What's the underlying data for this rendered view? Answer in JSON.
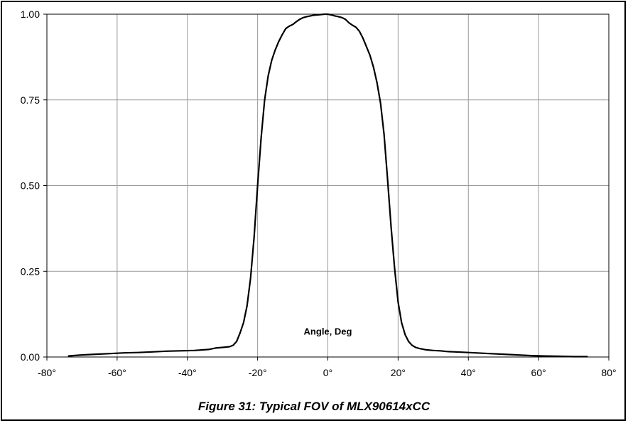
{
  "caption": "Figure 31: Typical FOV of MLX90614xCC",
  "chart_data": {
    "type": "line",
    "title": "",
    "xlabel": "",
    "ylabel": "",
    "annotation": "Angle, Deg",
    "xlim": [
      -80,
      80
    ],
    "ylim": [
      0,
      1
    ],
    "x_ticks": [
      -80,
      -60,
      -40,
      -20,
      0,
      20,
      40,
      60,
      80
    ],
    "x_tick_labels": [
      "-80°",
      "-60°",
      "-40°",
      "-20°",
      "0°",
      "20°",
      "40°",
      "60°",
      "80°"
    ],
    "y_ticks": [
      0,
      0.25,
      0.5,
      0.75,
      1.0
    ],
    "y_tick_labels": [
      "0.00",
      "0.25",
      "0.50",
      "0.75",
      "1.00"
    ],
    "grid": true,
    "line_color": "#000000",
    "grid_color": "#999999",
    "series": [
      {
        "x": [
          -74,
          -70,
          -66,
          -62,
          -58,
          -54,
          -50,
          -46,
          -42,
          -38,
          -34,
          -32,
          -30,
          -28,
          -27,
          -26,
          -25,
          -24,
          -23,
          -22,
          -21,
          -20,
          -19,
          -18,
          -17,
          -16,
          -15,
          -14,
          -13,
          -12,
          -11,
          -10,
          -9,
          -8,
          -7,
          -6,
          -5,
          -4,
          -3,
          -2,
          -1,
          0,
          1,
          2,
          3,
          4,
          5,
          6,
          7,
          8,
          9,
          10,
          11,
          12,
          13,
          14,
          15,
          16,
          17,
          18,
          19,
          20,
          21,
          22,
          23,
          24,
          25,
          26,
          27,
          28,
          30,
          32,
          34,
          38,
          42,
          46,
          50,
          54,
          58,
          62,
          66,
          70,
          74
        ],
        "y": [
          0.003,
          0.006,
          0.008,
          0.01,
          0.012,
          0.013,
          0.015,
          0.017,
          0.018,
          0.019,
          0.022,
          0.026,
          0.028,
          0.03,
          0.034,
          0.045,
          0.07,
          0.1,
          0.15,
          0.23,
          0.35,
          0.5,
          0.64,
          0.75,
          0.82,
          0.865,
          0.895,
          0.92,
          0.94,
          0.958,
          0.965,
          0.97,
          0.978,
          0.985,
          0.99,
          0.993,
          0.995,
          0.997,
          0.998,
          0.999,
          1.0,
          1.0,
          0.998,
          0.995,
          0.993,
          0.99,
          0.985,
          0.975,
          0.968,
          0.962,
          0.95,
          0.93,
          0.905,
          0.88,
          0.845,
          0.8,
          0.74,
          0.65,
          0.52,
          0.38,
          0.26,
          0.16,
          0.1,
          0.065,
          0.045,
          0.034,
          0.028,
          0.025,
          0.023,
          0.021,
          0.019,
          0.018,
          0.016,
          0.014,
          0.012,
          0.01,
          0.008,
          0.006,
          0.004,
          0.003,
          0.002,
          0.001,
          0.001
        ]
      }
    ]
  }
}
